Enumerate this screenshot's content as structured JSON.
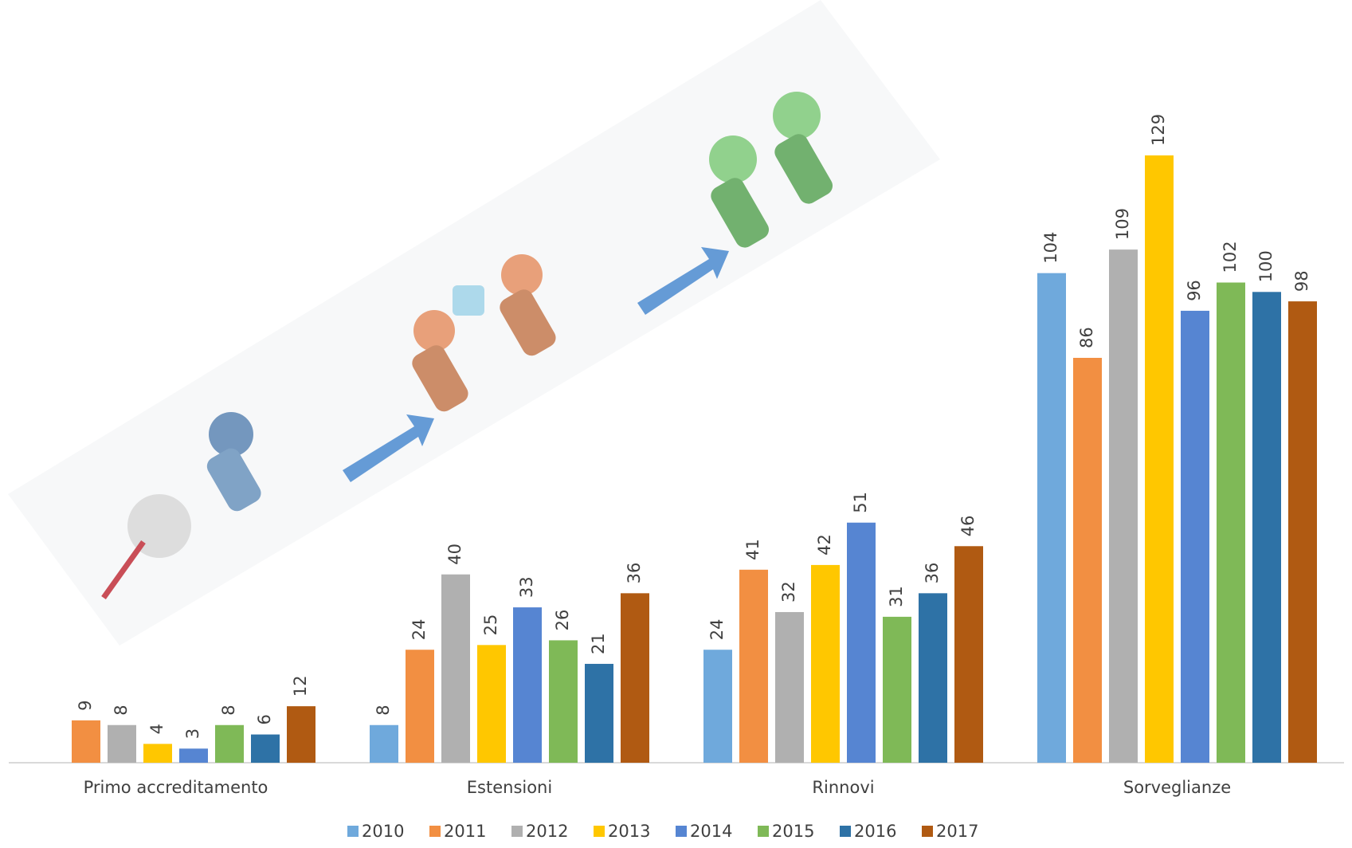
{
  "chart_data": {
    "type": "bar",
    "categories": [
      "Primo accreditamento",
      "Estensioni",
      "Rinnovi",
      "Sorveglianze"
    ],
    "series": [
      {
        "name": "2010",
        "color": "#6fa9dc",
        "values": [
          null,
          8,
          24,
          104
        ]
      },
      {
        "name": "2011",
        "color": "#f28f42",
        "values": [
          9,
          24,
          41,
          86
        ]
      },
      {
        "name": "2012",
        "color": "#b0b0b0",
        "values": [
          8,
          40,
          32,
          109
        ]
      },
      {
        "name": "2013",
        "color": "#ffc700",
        "values": [
          4,
          25,
          42,
          129
        ]
      },
      {
        "name": "2014",
        "color": "#5685d2",
        "values": [
          3,
          33,
          51,
          96
        ]
      },
      {
        "name": "2015",
        "color": "#7fb957",
        "values": [
          8,
          26,
          31,
          102
        ]
      },
      {
        "name": "2016",
        "color": "#2e72a6",
        "values": [
          6,
          21,
          36,
          100
        ]
      },
      {
        "name": "2017",
        "color": "#b05a12",
        "values": [
          12,
          36,
          46,
          98
        ]
      }
    ],
    "legend": "bottom"
  }
}
